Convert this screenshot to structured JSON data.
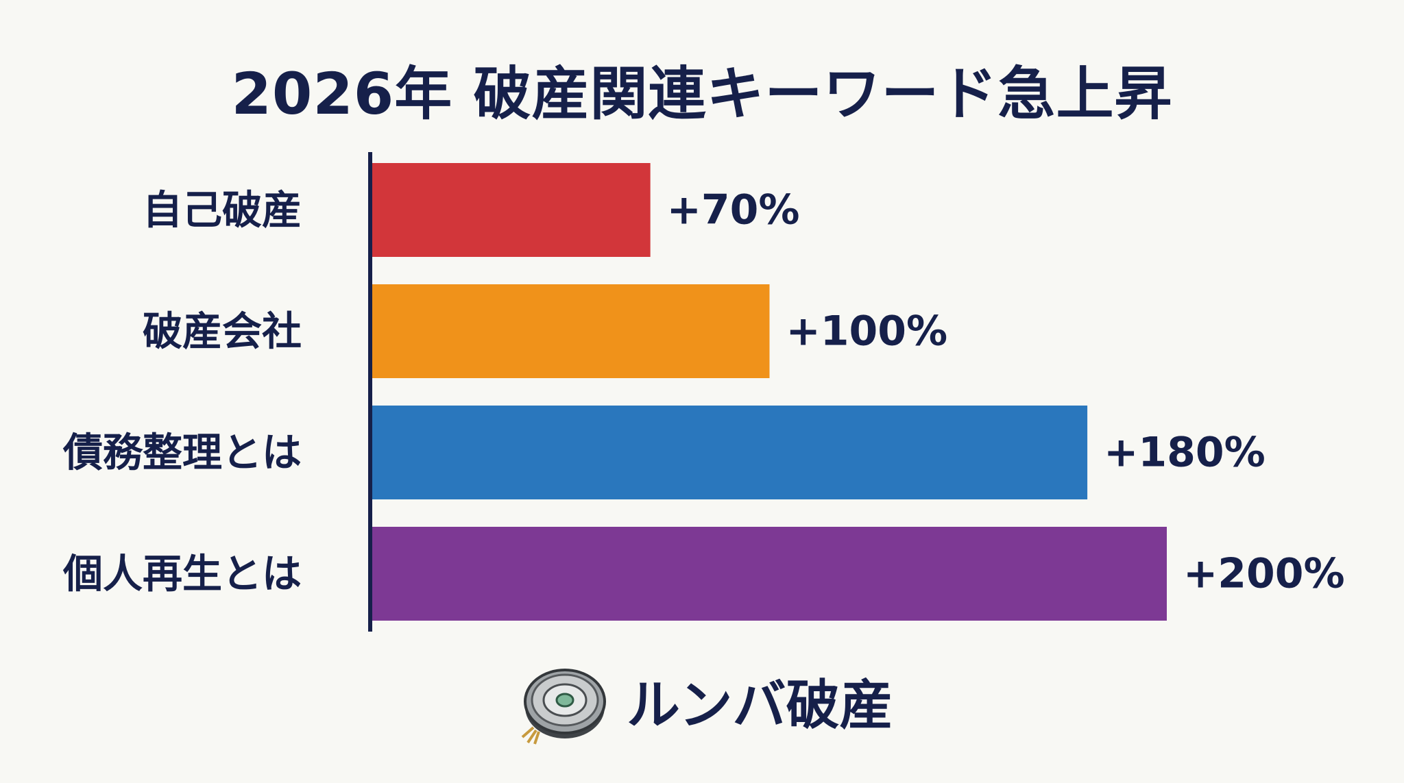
{
  "chart_data": {
    "type": "bar",
    "orientation": "horizontal",
    "title": "2026年 破産関連キーワード急上昇",
    "categories": [
      "自己破産",
      "破産会社",
      "債務整理とは",
      "個人再生とは"
    ],
    "values": [
      70,
      100,
      180,
      200
    ],
    "value_labels": [
      "+70%",
      "+100%",
      "+180%",
      "+200%"
    ],
    "colors": [
      "#d2363a",
      "#f0921a",
      "#2a77bd",
      "#7d3994"
    ],
    "xlim": [
      0,
      200
    ],
    "grid": false,
    "legend": "none"
  },
  "brand": {
    "icon": "robot-vacuum-icon",
    "text": "ルンバ破産"
  }
}
